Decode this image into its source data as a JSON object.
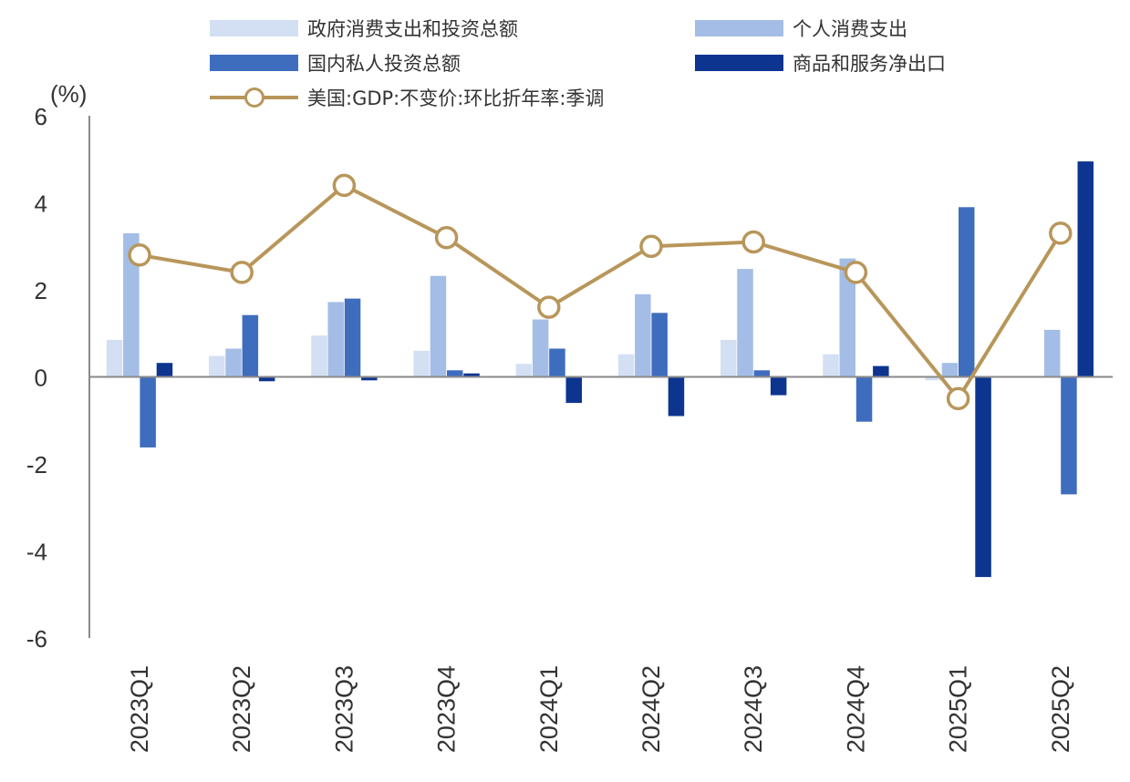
{
  "chart_data": {
    "type": "bar",
    "unit_label": "(%)",
    "categories": [
      "2023Q1",
      "2023Q2",
      "2023Q3",
      "2023Q4",
      "2024Q1",
      "2024Q2",
      "2024Q3",
      "2024Q4",
      "2025Q1",
      "2025Q2"
    ],
    "ylim": [
      -6,
      6
    ],
    "yticks": [
      6,
      4,
      2,
      0,
      -2,
      -4,
      -6
    ],
    "series": [
      {
        "name": "政府消费支出和投资总额",
        "type": "bar",
        "color": "#D3E0F3",
        "values": [
          0.85,
          0.48,
          0.95,
          0.6,
          0.3,
          0.52,
          0.85,
          0.52,
          -0.08,
          0.0
        ]
      },
      {
        "name": "个人消费支出",
        "type": "bar",
        "color": "#A4BDE6",
        "values": [
          3.3,
          0.65,
          1.72,
          2.32,
          1.32,
          1.9,
          2.48,
          2.72,
          0.32,
          1.08
        ]
      },
      {
        "name": "国内私人投资总额",
        "type": "bar",
        "color": "#3E6DBE",
        "values": [
          -1.62,
          1.42,
          1.8,
          0.15,
          0.65,
          1.47,
          0.15,
          -1.03,
          3.9,
          -2.7
        ]
      },
      {
        "name": "商品和服务净出口",
        "type": "bar",
        "color": "#0D3590",
        "values": [
          0.32,
          -0.1,
          -0.08,
          0.08,
          -0.6,
          -0.9,
          -0.42,
          0.25,
          -4.6,
          4.95
        ]
      },
      {
        "name": "美国:GDP:不变价:环比折年率:季调",
        "type": "line",
        "color": "#B8965A",
        "values": [
          2.8,
          2.4,
          4.4,
          3.2,
          1.6,
          3.0,
          3.1,
          2.4,
          -0.5,
          3.3
        ]
      }
    ]
  }
}
